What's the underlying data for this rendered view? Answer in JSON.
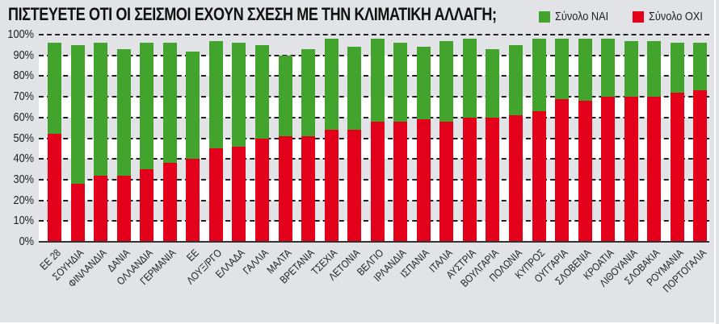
{
  "title": "ΠΙΣΤΕΥΕΤΕ ΟΤΙ ΟΙ ΣΕΙΣΜΟΙ ΕΧΟΥΝ ΣΧΕΣΗ ΜΕ ΤΗΝ ΚΛΙΜΑΤΙΚΗ ΑΛΛΑΓΗ;",
  "legend": [
    {
      "label": "Σύνολο ΝΑΙ",
      "color": "#43a42d"
    },
    {
      "label": "Σύνολο ΟΧΙ",
      "color": "#e2001a"
    }
  ],
  "y_ticks": [
    "100%",
    "90%",
    "80%",
    "70%",
    "60%",
    "50%",
    "40%",
    "30%",
    "20%",
    "10%",
    "0%"
  ],
  "colors": {
    "yes": "#43a42d",
    "no": "#e2001a",
    "band_grey": "#e1e3e6",
    "band_white": "#ffffff"
  },
  "chart_data": {
    "type": "bar",
    "stacked": true,
    "title": "ΠΙΣΤΕΥΕΤΕ ΟΤΙ ΟΙ ΣΕΙΣΜΟΙ ΕΧΟΥΝ ΣΧΕΣΗ ΜΕ ΤΗΝ ΚΛΙΜΑΤΙΚΗ ΑΛΛΑΓΗ;",
    "xlabel": "",
    "ylabel": "",
    "ylim": [
      0,
      100
    ],
    "y_unit": "%",
    "grid": true,
    "legend_position": "top-right",
    "categories": [
      "ΕΕ 28",
      "ΣΟΥΗΔΙΑ",
      "ΦΙΝΛΑΝΔΙΑ",
      "ΔΑΝΙΑ",
      "ΟΛΛΑΝΔΙΑ",
      "ΓΕΡΜΑΝΙΑ",
      "ΕΕ",
      "ΛΟΥΞ/ΡΓΟ",
      "ΕΛΛΑΔΑ",
      "ΓΑΛΛΙΑ",
      "ΜΑΛΤΑ",
      "ΒΡΕΤΑΝΙΑ",
      "ΤΣΕΧΙΑ",
      "ΛΕΤΟΝΙΑ",
      "ΒΕΛΓΙΟ",
      "ΙΡΛΑΝΔΙΑ",
      "ΙΣΠΑΝΙΑ",
      "ΙΤΑΛΙΑ",
      "ΑΥΣΤΡΙΑ",
      "ΒΟΥΛΓΑΡΙΑ",
      "ΠΟΛΩΝΙΑ",
      "ΚΥΠΡΟΣ",
      "ΟΥΓΓΑΡΙΑ",
      "ΣΛΟΒΕΝΙΑ",
      "ΚΡΟΑΤΙΑ",
      "ΛΙΘΟΥΑΝΙΑ",
      "ΣΛΟΒΑΚΙΑ",
      "ΡΟΥΜΑΝΙΑ",
      "ΠΟΡΤΟΓΑΛΙΑ"
    ],
    "series": [
      {
        "name": "Σύνολο ΟΧΙ",
        "color": "#e2001a",
        "values": [
          52,
          28,
          32,
          32,
          35,
          38,
          40,
          45,
          46,
          50,
          51,
          51,
          54,
          54,
          58,
          58,
          59,
          58,
          60,
          60,
          61,
          63,
          69,
          68,
          70,
          70,
          70,
          72,
          73
        ]
      },
      {
        "name": "Σύνολο ΝΑΙ",
        "color": "#43a42d",
        "values": [
          44,
          67,
          64,
          61,
          61,
          58,
          52,
          52,
          50,
          45,
          39,
          42,
          44,
          40,
          40,
          38,
          35,
          39,
          38,
          33,
          34,
          35,
          29,
          30,
          28,
          27,
          27,
          24,
          23
        ]
      }
    ],
    "totals": [
      96,
      95,
      96,
      93,
      96,
      96,
      92,
      97,
      96,
      95,
      90,
      93,
      98,
      94,
      98,
      96,
      94,
      97,
      98,
      93,
      95,
      98,
      98,
      98,
      98,
      97,
      97,
      96,
      96
    ]
  }
}
